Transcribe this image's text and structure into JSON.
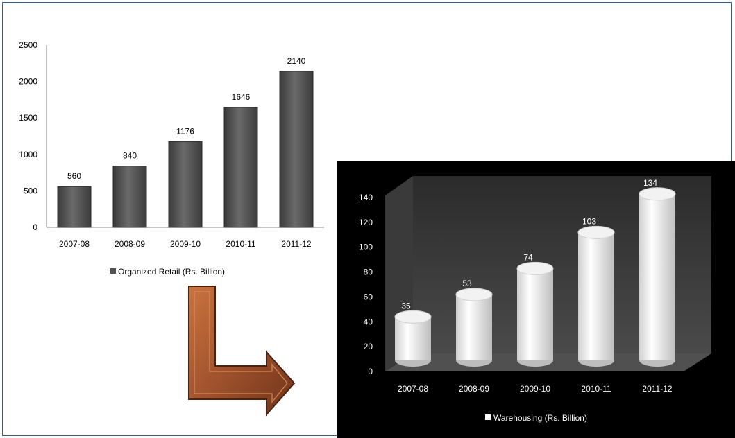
{
  "chart_data": [
    {
      "type": "bar",
      "categories": [
        "2007-08",
        "2008-09",
        "2009-10",
        "2010-11",
        "2011-12"
      ],
      "series": [
        {
          "name": "Organized Retail (Rs. Billion)",
          "values": [
            560,
            840,
            1176,
            1646,
            2140
          ]
        }
      ],
      "data_labels": [
        "560",
        "840",
        "1176",
        "1646",
        "2140"
      ],
      "yticks": [
        "0",
        "500",
        "1000",
        "1500",
        "2000",
        "2500"
      ],
      "ylim": [
        0,
        2500
      ],
      "legend_position": "bottom",
      "bar_color": "#4f4f4f",
      "grid": false
    },
    {
      "type": "bar",
      "style": "3d-cylinder",
      "categories": [
        "2007-08",
        "2008-09",
        "2009-10",
        "2010-11",
        "2011-12"
      ],
      "series": [
        {
          "name": "Warehousing (Rs. Billion)",
          "values": [
            35,
            53,
            74,
            103,
            134
          ]
        }
      ],
      "data_labels": [
        "35",
        "53",
        "74",
        "103",
        "134"
      ],
      "yticks": [
        "0",
        "20",
        "40",
        "60",
        "80",
        "100",
        "120",
        "140"
      ],
      "ylim": [
        0,
        140
      ],
      "legend_position": "bottom",
      "background": "#000000",
      "bar_color": "#ffffff",
      "grid": false
    }
  ],
  "colors": {
    "frame": "#3b5e86",
    "arrow": "#a0522d"
  },
  "connector_icon": "arrow-down-right-icon"
}
